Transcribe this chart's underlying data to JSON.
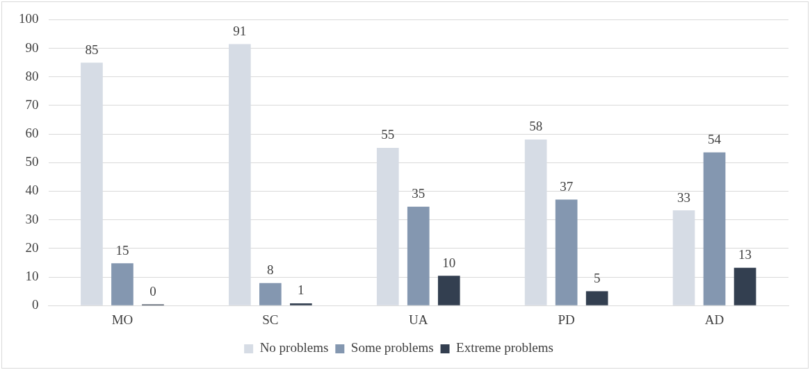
{
  "chart_data": {
    "type": "bar",
    "categories": [
      "MO",
      "SC",
      "UA",
      "PD",
      "AD"
    ],
    "series": [
      {
        "name": "No problems",
        "color": "#d6dce5",
        "values": [
          85,
          91.5,
          55.2,
          58.1,
          33.3
        ],
        "value_labels": [
          "85",
          "91",
          "55",
          "58",
          "33"
        ]
      },
      {
        "name": "Some problems",
        "color": "#8497b0",
        "values": [
          14.8,
          7.9,
          34.6,
          37.1,
          53.6
        ],
        "value_labels": [
          "15",
          "8",
          "35",
          "37",
          "54"
        ]
      },
      {
        "name": "Extreme problems",
        "color": "#333f50",
        "values": [
          0.4,
          0.8,
          10.4,
          5,
          13.2
        ],
        "value_labels": [
          "0",
          "1",
          "10",
          "5",
          "13"
        ]
      }
    ],
    "ylim": [
      0,
      100
    ],
    "yticks": [
      0,
      10,
      20,
      30,
      40,
      50,
      60,
      70,
      80,
      90,
      100
    ],
    "grid": "y",
    "legend": "bottom"
  }
}
